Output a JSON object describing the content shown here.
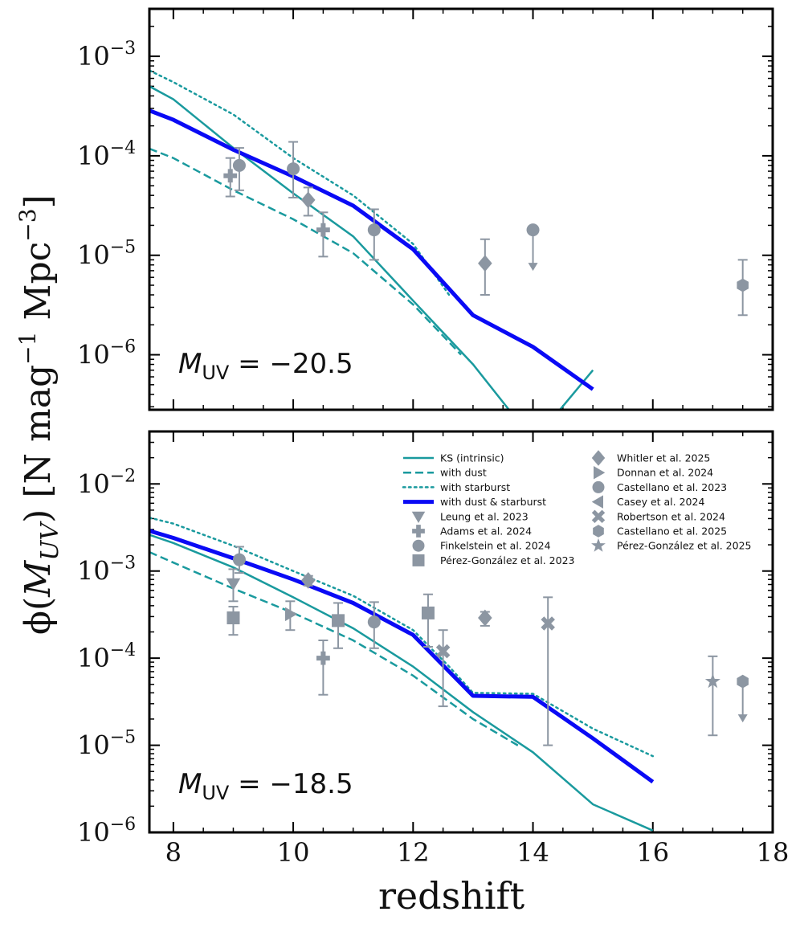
{
  "figure": {
    "xlabel": "redshift",
    "ylabel_prefix": "ϕ(",
    "ylabel_M": "M",
    "ylabel_sub": "UV",
    "ylabel_units": ") [N mag",
    "ylabel_exp1": "−1",
    "ylabel_mpc": " Mpc",
    "ylabel_exp2": "−3",
    "ylabel_close": "]",
    "x_ticks": [
      "8",
      "10",
      "12",
      "14",
      "16",
      "18"
    ],
    "x_tick_values": [
      8,
      10,
      12,
      14,
      16,
      18
    ],
    "xlim": [
      7.6,
      18.0
    ]
  },
  "colors": {
    "model": "#1a9a9e",
    "combined": "#0a0af5",
    "observations": "#8c96a2"
  },
  "chart_data": [
    {
      "type": "line",
      "panel": "top",
      "annotation_M": "M",
      "annotation_sub": "UV",
      "annotation_value": " = −20.5",
      "yscale": "log",
      "ylim": [
        2.8e-07,
        0.003
      ],
      "y_ticks": [
        {
          "base": "10",
          "exp": "−3",
          "v": 0.001
        },
        {
          "base": "10",
          "exp": "−4",
          "v": 0.0001
        },
        {
          "base": "10",
          "exp": "−5",
          "v": 1e-05
        },
        {
          "base": "10",
          "exp": "−6",
          "v": 1e-06
        }
      ],
      "series": [
        {
          "name": "KS (intrinsic)",
          "style": "solid",
          "x": [
            7.6,
            8,
            9,
            10,
            11,
            12,
            13,
            13.6
          ],
          "y": [
            0.0005,
            0.00037,
            0.00012,
            4.2e-05,
            1.55e-05,
            3.5e-06,
            8e-07,
            2.8e-07
          ]
        },
        {
          "name": "KS (intrinsic) z>14",
          "style": "solid",
          "x": [
            14.45,
            15
          ],
          "y": [
            2.8e-07,
            7e-07
          ]
        },
        {
          "name": "with dust",
          "style": "dashed",
          "x": [
            7.6,
            8,
            9,
            10,
            11,
            12,
            12.8
          ],
          "y": [
            0.000118,
            9.5e-05,
            4.5e-05,
            2.3e-05,
            1.05e-05,
            3.2e-06,
            1e-06
          ]
        },
        {
          "name": "with starburst",
          "style": "dotted",
          "x": [
            7.6,
            8,
            9,
            10,
            11,
            12,
            12.6
          ],
          "y": [
            0.00072,
            0.00055,
            0.00026,
            9.5e-05,
            4e-05,
            1.3e-05,
            4e-06
          ]
        },
        {
          "name": "with dust & starburst",
          "style": "thick",
          "x": [
            7.6,
            8,
            9,
            10,
            11,
            12,
            13,
            14,
            15
          ],
          "y": [
            0.000285,
            0.00023,
            0.000115,
            6.2e-05,
            3.15e-05,
            1.15e-05,
            2.5e-06,
            1.2e-06,
            4.5e-07
          ]
        }
      ],
      "points": [
        {
          "name": "Adams et al. 2024",
          "marker": "plus",
          "x": 8.95,
          "y": 6.3e-05,
          "lo": 3.9e-05,
          "hi": 9.5e-05
        },
        {
          "name": "Finkelstein et al. 2024",
          "marker": "circle",
          "x": 9.1,
          "y": 8e-05,
          "lo": 4.5e-05,
          "hi": 0.00012
        },
        {
          "name": "Finkelstein et al. 2024",
          "marker": "circle",
          "x": 10.0,
          "y": 7.4e-05,
          "lo": 3.8e-05,
          "hi": 0.000138
        },
        {
          "name": "Whitler et al. 2025",
          "marker": "diamond",
          "x": 10.25,
          "y": 3.6e-05,
          "lo": 2.5e-05,
          "hi": 4.8e-05
        },
        {
          "name": "Adams et al. 2024",
          "marker": "plus",
          "x": 10.5,
          "y": 1.8e-05,
          "lo": 9.7e-06,
          "hi": 2.7e-05
        },
        {
          "name": "Finkelstein et al. 2024",
          "marker": "circle",
          "x": 11.35,
          "y": 1.8e-05,
          "lo": 9e-06,
          "hi": 2.9e-05
        },
        {
          "name": "Whitler et al. 2025",
          "marker": "diamond",
          "x": 13.2,
          "y": 8.3e-06,
          "lo": 4e-06,
          "hi": 1.45e-05
        },
        {
          "name": "Finkelstein et al. 2024",
          "marker": "circle",
          "x": 14.0,
          "y": 1.8e-05,
          "upper_limit": true
        },
        {
          "name": "Castellano et al. 2025",
          "marker": "hexagon",
          "x": 17.5,
          "y": 5e-06,
          "lo": 2.5e-06,
          "hi": 9e-06
        }
      ]
    },
    {
      "type": "line",
      "panel": "bottom",
      "annotation_M": "M",
      "annotation_sub": "UV",
      "annotation_value": " = −18.5",
      "yscale": "log",
      "ylim": [
        1e-06,
        0.04
      ],
      "y_ticks": [
        {
          "base": "10",
          "exp": "−2",
          "v": 0.01
        },
        {
          "base": "10",
          "exp": "−3",
          "v": 0.001
        },
        {
          "base": "10",
          "exp": "−4",
          "v": 0.0001
        },
        {
          "base": "10",
          "exp": "−5",
          "v": 1e-05
        },
        {
          "base": "10",
          "exp": "−6",
          "v": 1e-06
        }
      ],
      "series": [
        {
          "name": "KS (intrinsic)",
          "style": "solid",
          "x": [
            7.6,
            8,
            9,
            10,
            11,
            12,
            13,
            14,
            15,
            16
          ],
          "y": [
            0.0026,
            0.0021,
            0.0011,
            0.0005,
            0.00022,
            8e-05,
            2.4e-05,
            8.3e-06,
            2.1e-06,
            1.05e-06
          ]
        },
        {
          "name": "with dust",
          "style": "dashed",
          "x": [
            7.6,
            8,
            9,
            10,
            11,
            12,
            13,
            13.8
          ],
          "y": [
            0.00165,
            0.00125,
            0.00063,
            0.00033,
            0.00016,
            6.3e-05,
            2e-05,
            9.5e-06
          ]
        },
        {
          "name": "with starburst",
          "style": "dotted",
          "x": [
            7.6,
            8,
            9,
            10,
            11,
            12,
            12.6,
            13,
            14,
            15,
            16
          ],
          "y": [
            0.0041,
            0.0035,
            0.00195,
            0.001,
            0.00052,
            0.00021,
            8e-05,
            4e-05,
            3.9e-05,
            1.55e-05,
            7.5e-06
          ]
        },
        {
          "name": "with dust & starburst",
          "style": "thick",
          "x": [
            7.6,
            8,
            9,
            10,
            11,
            12,
            13,
            14,
            15,
            16
          ],
          "y": [
            0.0029,
            0.0024,
            0.0014,
            0.0008,
            0.00043,
            0.000185,
            3.7e-05,
            3.6e-05,
            1.2e-05,
            3.8e-06
          ]
        }
      ],
      "points": [
        {
          "name": "Pérez-González et al. 2023",
          "marker": "square",
          "x": 9.0,
          "y": 0.00029,
          "lo": 0.000185,
          "hi": 0.00039
        },
        {
          "name": "Leung et al. 2023",
          "marker": "triangle-down",
          "x": 9.0,
          "y": 0.00072,
          "lo": 0.00045,
          "hi": 0.00105
        },
        {
          "name": "Finkelstein et al. 2024",
          "marker": "circle",
          "x": 9.1,
          "y": 0.00135,
          "lo": 0.00095,
          "hi": 0.0019
        },
        {
          "name": "Donnan et al. 2024",
          "marker": "triangle-right",
          "x": 9.95,
          "y": 0.00032,
          "lo": 0.00021,
          "hi": 0.00045
        },
        {
          "name": "Whitler et al. 2025",
          "marker": "diamond",
          "x": 10.25,
          "y": 0.00078,
          "lo": 0.00068,
          "hi": 0.00088
        },
        {
          "name": "Adams et al. 2024",
          "marker": "plus",
          "x": 10.5,
          "y": 0.0001,
          "lo": 3.8e-05,
          "hi": 0.00016
        },
        {
          "name": "Pérez-González et al. 2023",
          "marker": "square",
          "x": 10.75,
          "y": 0.00027,
          "lo": 0.00013,
          "hi": 0.00043
        },
        {
          "name": "Finkelstein et al. 2024",
          "marker": "circle",
          "x": 11.35,
          "y": 0.00026,
          "lo": 0.00013,
          "hi": 0.00044
        },
        {
          "name": "Pérez-González et al. 2023",
          "marker": "square",
          "x": 12.25,
          "y": 0.00033,
          "lo": 0.000135,
          "hi": 0.00054
        },
        {
          "name": "Robertson et al. 2024",
          "marker": "cross",
          "x": 12.5,
          "y": 0.00012,
          "lo": 2.8e-05,
          "hi": 0.00021
        },
        {
          "name": "Whitler et al. 2025",
          "marker": "diamond",
          "x": 13.2,
          "y": 0.00029,
          "lo": 0.000235,
          "hi": 0.00034
        },
        {
          "name": "Robertson et al. 2024",
          "marker": "cross",
          "x": 14.25,
          "y": 0.00025,
          "lo": 1e-05,
          "hi": 0.0005
        },
        {
          "name": "Pérez-González et al. 2025",
          "marker": "star",
          "x": 17.0,
          "y": 5.4e-05,
          "lo": 1.3e-05,
          "hi": 0.000105
        },
        {
          "name": "Castellano et al. 2025",
          "marker": "hexagon",
          "x": 17.5,
          "y": 5.4e-05,
          "upper_limit": true
        }
      ],
      "legend": {
        "placement": "top-right",
        "models": [
          {
            "label": "KS (intrinsic)",
            "style": "solid"
          },
          {
            "label": "with dust",
            "style": "dashed"
          },
          {
            "label": "with starburst",
            "style": "dotted"
          },
          {
            "label": "with dust & starburst",
            "style": "thick"
          }
        ],
        "observations_col1": [
          {
            "label": "Leung et al. 2023",
            "marker": "triangle-down"
          },
          {
            "label": "Adams et al. 2024",
            "marker": "plus"
          },
          {
            "label": "Finkelstein et al. 2024",
            "marker": "circle"
          },
          {
            "label": "Pérez-González et al. 2023",
            "marker": "square"
          }
        ],
        "observations_col2": [
          {
            "label": "Whitler et al. 2025",
            "marker": "diamond"
          },
          {
            "label": "Donnan et al. 2024",
            "marker": "triangle-right"
          },
          {
            "label": "Castellano et al. 2023",
            "marker": "circle"
          },
          {
            "label": "Casey et al. 2024",
            "marker": "triangle-left"
          },
          {
            "label": "Robertson et al. 2024",
            "marker": "cross"
          },
          {
            "label": "Castellano et al. 2025",
            "marker": "hexagon"
          },
          {
            "label": "Pérez-González et al. 2025",
            "marker": "star"
          }
        ]
      }
    }
  ]
}
